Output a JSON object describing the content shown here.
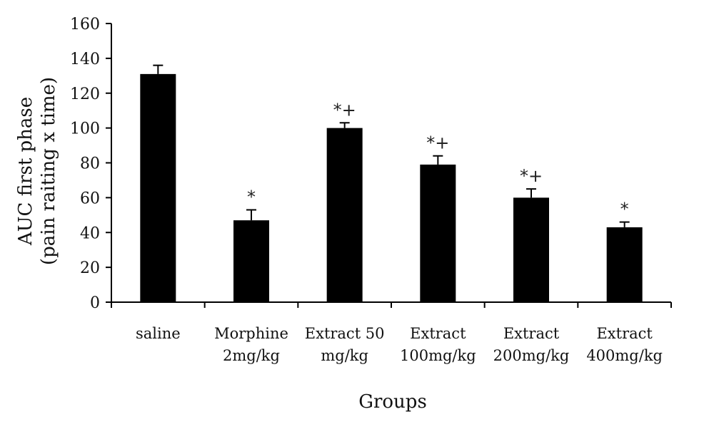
{
  "chart_data": {
    "type": "bar",
    "categories": [
      [
        "saline"
      ],
      [
        "Morphine",
        "2mg/kg"
      ],
      [
        "Extract 50",
        "mg/kg"
      ],
      [
        "Extract",
        "100mg/kg"
      ],
      [
        "Extract",
        "200mg/kg"
      ],
      [
        "Extract",
        "400mg/kg"
      ]
    ],
    "values": [
      131,
      47,
      100,
      79,
      60,
      43
    ],
    "errors": [
      5,
      6,
      3,
      5,
      5,
      3
    ],
    "annotations": [
      "",
      "*",
      "*+",
      "*+",
      "*+",
      "*"
    ],
    "xlabel": "Groups",
    "ylabel": [
      "AUC first phase",
      "(pain raiting x time)"
    ],
    "ylim": [
      0,
      160
    ],
    "yticks": [
      0,
      20,
      40,
      60,
      80,
      100,
      120,
      140,
      160
    ],
    "bar_color": "#000000",
    "grid": false,
    "legend": "none"
  }
}
